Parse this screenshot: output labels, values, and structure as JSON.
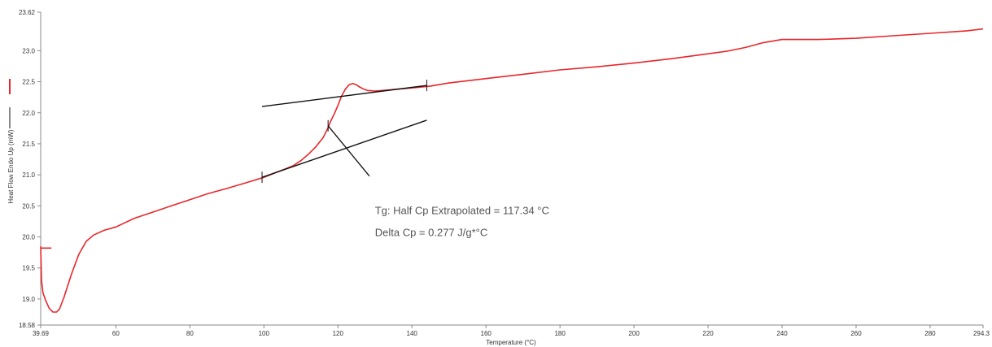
{
  "chart_data": {
    "type": "line",
    "title": "",
    "xlabel": "Temperature (°C)",
    "ylabel": "Heat Flow Endo Up (mW)",
    "xlim": [
      39.69,
      294.3
    ],
    "ylim": [
      18.58,
      23.62
    ],
    "x_tick_labels": [
      "39.69",
      "60",
      "80",
      "100",
      "120",
      "140",
      "160",
      "180",
      "200",
      "220",
      "240",
      "260",
      "280",
      "294.3"
    ],
    "y_tick_labels": [
      "18.58",
      "19.0",
      "19.5",
      "20.0",
      "20.5",
      "21.0",
      "21.5",
      "22.0",
      "22.5",
      "23.0",
      "23.62"
    ],
    "grid": false,
    "legend": "left-vertical",
    "series": [
      {
        "color": "#e8262b",
        "x": [
          39.69,
          39.9,
          40.3,
          41.0,
          42.0,
          43.0,
          44.0,
          44.8,
          46.0,
          48.0,
          50.0,
          52.0,
          54.0,
          57.0,
          60.0,
          65.0,
          70.0,
          75.0,
          80.0,
          85.0,
          90.0,
          95.0,
          100.0,
          103.0,
          106.0,
          108.0,
          110.0,
          112.0,
          114.0,
          116.0,
          117.34,
          118.0,
          119.0,
          120.0,
          121.0,
          122.0,
          123.0,
          124.0,
          125.0,
          126.0,
          127.0,
          128.0,
          130.0,
          132.0,
          134.0,
          136.0,
          138.0,
          140.0,
          145.0,
          150.0,
          160.0,
          170.0,
          180.0,
          190.0,
          200.0,
          210.0,
          220.0,
          225.0,
          230.0,
          235.0,
          240.0,
          243.0,
          250.0,
          260.0,
          270.0,
          280.0,
          290.0,
          294.3
        ],
        "y": [
          19.85,
          19.3,
          19.1,
          18.98,
          18.85,
          18.79,
          18.79,
          18.84,
          19.03,
          19.4,
          19.72,
          19.93,
          20.03,
          20.11,
          20.16,
          20.3,
          20.4,
          20.5,
          20.6,
          20.7,
          20.78,
          20.87,
          20.96,
          21.03,
          21.1,
          21.15,
          21.23,
          21.33,
          21.45,
          21.6,
          21.76,
          21.86,
          21.98,
          22.12,
          22.27,
          22.38,
          22.45,
          22.47,
          22.45,
          22.41,
          22.38,
          22.36,
          22.35,
          22.36,
          22.37,
          22.38,
          22.39,
          22.4,
          22.43,
          22.48,
          22.55,
          22.62,
          22.69,
          22.74,
          22.8,
          22.87,
          22.95,
          22.99,
          23.05,
          23.13,
          23.18,
          23.18,
          23.18,
          23.2,
          23.24,
          23.28,
          23.32,
          23.35
        ]
      },
      {
        "color": "#e8262b",
        "x": [
          39.69,
          42.6
        ],
        "y": [
          19.82,
          19.82
        ]
      }
    ],
    "tangent_lines": [
      {
        "color": "#111111",
        "x": [
          99.5,
          144.0
        ],
        "y": [
          22.1,
          22.44
        ]
      },
      {
        "color": "#111111",
        "x": [
          99.5,
          144.0
        ],
        "y": [
          20.96,
          21.88
        ]
      }
    ],
    "markers": [
      {
        "x": 99.5,
        "y": 20.96
      },
      {
        "x": 117.34,
        "y": 21.79
      },
      {
        "x": 144.0,
        "y": 22.44
      }
    ],
    "leader_line": {
      "x": [
        117.34,
        128.5
      ],
      "y": [
        21.79,
        20.98
      ]
    },
    "annotation": {
      "anchor_x": 130.0,
      "anchor_y": 20.42,
      "lines": [
        "Tg: Half Cp Extrapolated = 117.34 °C",
        "Delta Cp = 0.277 J/g*°C"
      ]
    }
  }
}
